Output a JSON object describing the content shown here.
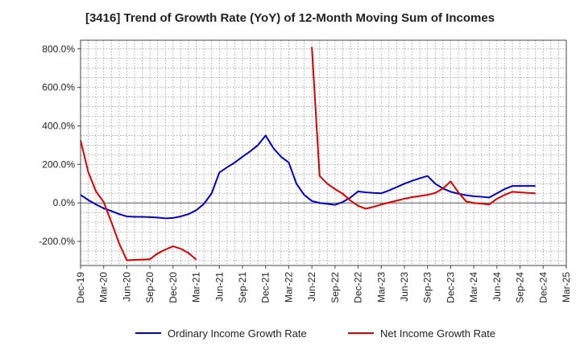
{
  "chart_data": {
    "type": "line",
    "title": "[3416]  Trend of Growth Rate (YoY) of 12-Month Moving Sum of Incomes",
    "xlabel": "",
    "ylabel": "",
    "ylim": [
      -325,
      845
    ],
    "y_ticks": [
      -200,
      0,
      200,
      400,
      600,
      800
    ],
    "y_tick_labels": [
      "-200.0%",
      "0.0%",
      "200.0%",
      "400.0%",
      "600.0%",
      "800.0%"
    ],
    "x_tick_labels": [
      "Dec-19",
      "Mar-20",
      "Jun-20",
      "Sep-20",
      "Dec-20",
      "Mar-21",
      "Jun-21",
      "Sep-21",
      "Dec-21",
      "Mar-22",
      "Jun-22",
      "Sep-22",
      "Dec-22",
      "Mar-23",
      "Jun-23",
      "Sep-23",
      "Dec-23",
      "Mar-24",
      "Jun-24",
      "Sep-24",
      "Dec-24",
      "Mar-25"
    ],
    "x_start": "Dec-19",
    "x_end": "Mar-25",
    "grid": true,
    "legend_position": "bottom",
    "series": [
      {
        "name": "Ordinary Income Growth Rate",
        "color": "#0000cc",
        "values": [
          42,
          15,
          -8,
          -28,
          -42,
          -58,
          -70,
          -72,
          -72,
          -74,
          -76,
          -80,
          -78,
          -70,
          -58,
          -38,
          -5,
          50,
          158,
          185,
          210,
          240,
          268,
          300,
          350,
          285,
          240,
          210,
          100,
          42,
          10,
          0,
          -5,
          -10,
          5,
          28,
          60,
          55,
          52,
          50,
          65,
          82,
          100,
          115,
          128,
          140,
          100,
          75,
          58,
          48,
          40,
          35,
          32,
          28,
          50,
          72,
          88,
          88,
          88,
          88
        ]
      },
      {
        "name": "Net Income Growth Rate",
        "color": "#dd0000",
        "values": [
          325,
          160,
          60,
          5,
          -100,
          -210,
          -298,
          -296,
          -294,
          -292,
          -262,
          -242,
          -225,
          -238,
          -260,
          -294,
          null,
          null,
          null,
          null,
          null,
          null,
          null,
          null,
          null,
          null,
          null,
          null,
          null,
          null,
          810,
          140,
          100,
          72,
          48,
          12,
          -15,
          -30,
          -20,
          -8,
          2,
          12,
          22,
          30,
          36,
          42,
          52,
          75,
          112,
          55,
          8,
          0,
          -4,
          -8,
          22,
          42,
          58,
          55,
          52,
          50
        ]
      }
    ]
  }
}
